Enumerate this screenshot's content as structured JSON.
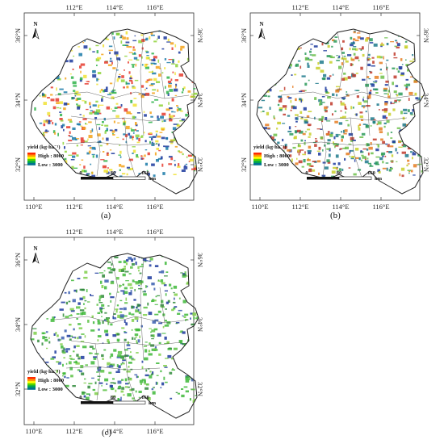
{
  "panels": [
    {
      "id": "a",
      "caption": "(a)",
      "lon_ticks_top": [
        "112°E",
        "114°E",
        "116°E"
      ],
      "lon_ticks_bottom": [
        "110°E",
        "112°E",
        "114°E",
        "116°E"
      ],
      "lat_ticks_left": [
        "36°N",
        "34°N",
        "32°N"
      ],
      "lat_ticks_right": [
        "36°N",
        "34°N",
        "32°N"
      ],
      "palette": [
        "#e63b2e",
        "#f3a21a",
        "#f0e234",
        "#8fd43a",
        "#2fb34a",
        "#1a7aa8",
        "#1c3a9e"
      ]
    },
    {
      "id": "b",
      "caption": "(b)",
      "lon_ticks_top": [
        "112°E",
        "114°E",
        "116°E"
      ],
      "lon_ticks_bottom": [
        "110°E",
        "112°E",
        "114°E",
        "116°E"
      ],
      "lat_ticks_left": [
        "36°N",
        "34°N",
        "32°N"
      ],
      "lat_ticks_right": [
        "36°N",
        "34°N",
        "32°N"
      ],
      "palette": [
        "#c0392b",
        "#e67e22",
        "#c8d02a",
        "#6cc04a",
        "#2b9a5a",
        "#1e7a8c",
        "#1c3a9e"
      ]
    },
    {
      "id": "c",
      "caption": "(c)",
      "lon_ticks_top": [
        "112°E",
        "114°E",
        "116°E"
      ],
      "lon_ticks_bottom": [
        "110°E",
        "112°E",
        "114°E",
        "116°E"
      ],
      "lat_ticks_left": [
        "36°N",
        "34°N",
        "32°N"
      ],
      "lat_ticks_right": [
        "36°N",
        "34°N",
        "32°N"
      ],
      "palette": [
        "#3fb83a",
        "#3fb83a",
        "#5cc244",
        "#7fcf4a",
        "#2f8a3a",
        "#3b5fb0",
        "#1c3a9e"
      ]
    }
  ],
  "legend": {
    "title": "yield (kg·ha⁻¹)",
    "high": "High : 8000",
    "low": "Low : 3000",
    "colors": [
      "#ff2a00",
      "#ff9a00",
      "#ffff00",
      "#55d400",
      "#00a650",
      "#00728f"
    ]
  },
  "scale_bar": {
    "ticks": [
      "0",
      "80",
      "160"
    ],
    "unit": "km"
  },
  "north_arrow": {
    "label": "N"
  }
}
